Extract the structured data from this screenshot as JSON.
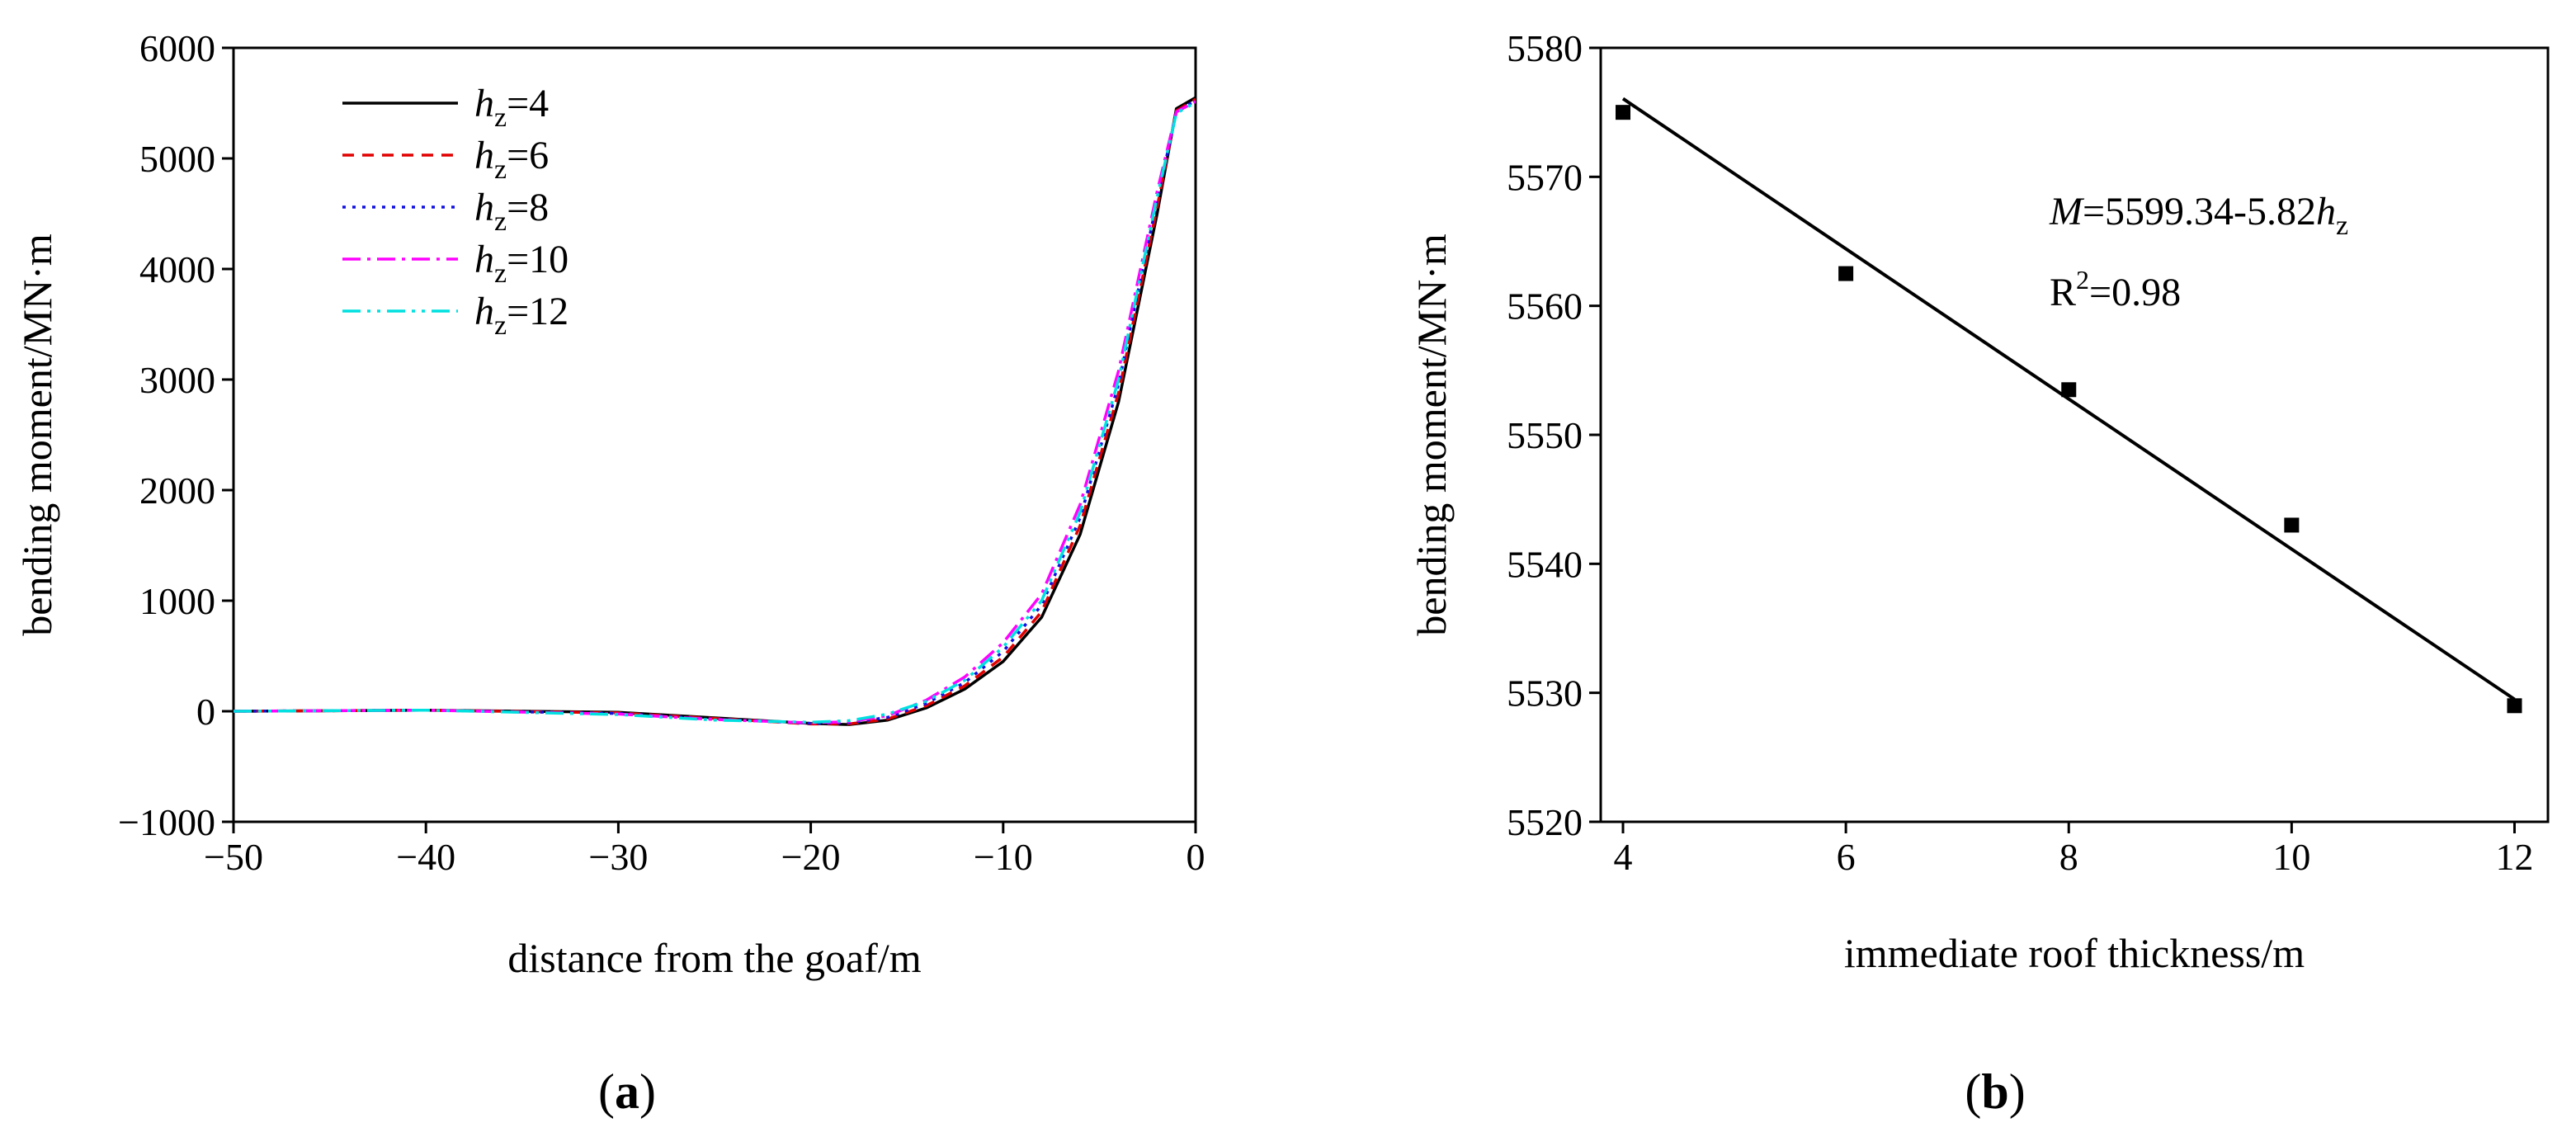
{
  "chart_data": [
    {
      "panel": "(a)",
      "panel_label": {
        "open": "(",
        "letter": "a",
        "close": ")"
      },
      "type": "line",
      "xlabel": "distance from the goaf/m",
      "ylabel": "bending moment/MN·m",
      "xlim": [
        -50,
        0
      ],
      "ylim": [
        -1000,
        6000
      ],
      "xticks": [
        -50,
        -40,
        -30,
        -20,
        -10,
        0
      ],
      "xtick_labels": [
        "−50",
        "−40",
        "−30",
        "−20",
        "−10",
        "0"
      ],
      "yticks": [
        -1000,
        0,
        1000,
        2000,
        3000,
        4000,
        5000,
        6000
      ],
      "ytick_labels": [
        "−1000",
        "0",
        "1000",
        "2000",
        "3000",
        "4000",
        "5000",
        "6000"
      ],
      "legend_position": "top-left",
      "series": [
        {
          "name": "hz=4",
          "legend_main": "h",
          "legend_sub": "z",
          "legend_value": "=4",
          "color": "#000000",
          "dash": "",
          "x": [
            -50,
            -40,
            -30,
            -25,
            -20,
            -18,
            -16,
            -14,
            -12,
            -10,
            -8,
            -6,
            -4,
            -2,
            -1,
            0
          ],
          "y": [
            0,
            10,
            -10,
            -60,
            -110,
            -120,
            -80,
            30,
            200,
            450,
            850,
            1600,
            2800,
            4500,
            5450,
            5550
          ]
        },
        {
          "name": "hz=6",
          "legend_main": "h",
          "legend_sub": "z",
          "legend_value": "=6",
          "color": "#e00000",
          "dash": "14 10",
          "x": [
            -50,
            -40,
            -30,
            -25,
            -20,
            -18,
            -16,
            -14,
            -12,
            -10,
            -8,
            -6,
            -4,
            -2,
            -1,
            0
          ],
          "y": [
            0,
            10,
            -15,
            -65,
            -115,
            -115,
            -70,
            50,
            230,
            490,
            900,
            1680,
            2880,
            4560,
            5430,
            5535
          ]
        },
        {
          "name": "hz=8",
          "legend_main": "h",
          "legend_sub": "z",
          "legend_value": "=8",
          "color": "#1010e0",
          "dash": "4 8",
          "x": [
            -50,
            -40,
            -30,
            -25,
            -20,
            -18,
            -16,
            -14,
            -12,
            -10,
            -8,
            -6,
            -4,
            -2,
            -1,
            0
          ],
          "y": [
            0,
            10,
            -20,
            -70,
            -110,
            -105,
            -55,
            70,
            260,
            540,
            960,
            1750,
            2960,
            4620,
            5420,
            5525
          ]
        },
        {
          "name": "hz=10",
          "legend_main": "h",
          "legend_sub": "z",
          "legend_value": "=10",
          "color": "#ff00ff",
          "dash": "22 8 4 8",
          "x": [
            -50,
            -40,
            -30,
            -25,
            -20,
            -18,
            -16,
            -14,
            -12,
            -10,
            -8,
            -6,
            -4,
            -2,
            -1,
            0
          ],
          "y": [
            0,
            10,
            -25,
            -75,
            -105,
            -95,
            -40,
            100,
            310,
            620,
            1060,
            1870,
            3080,
            4700,
            5420,
            5515
          ]
        },
        {
          "name": "hz=12",
          "legend_main": "h",
          "legend_sub": "z",
          "legend_value": "=12",
          "color": "#00e0e0",
          "dash": "22 8 4 8 4 8",
          "x": [
            -50,
            -40,
            -30,
            -25,
            -20,
            -18,
            -16,
            -14,
            -12,
            -10,
            -8,
            -6,
            -4,
            -2,
            -1,
            0
          ],
          "y": [
            0,
            10,
            -30,
            -80,
            -100,
            -85,
            -25,
            90,
            280,
            580,
            1000,
            1800,
            3000,
            4650,
            5410,
            5505
          ]
        }
      ]
    },
    {
      "panel": "(b)",
      "panel_label": {
        "open": "(",
        "letter": "b",
        "close": ")"
      },
      "type": "scatter",
      "xlabel": "immediate roof thickness/m",
      "ylabel": "bending moment/MN·m",
      "xlim": [
        3.8,
        12.3
      ],
      "ylim": [
        5520,
        5580
      ],
      "xticks": [
        4,
        6,
        8,
        10,
        12
      ],
      "xtick_labels": [
        "4",
        "6",
        "8",
        "10",
        "12"
      ],
      "yticks": [
        5520,
        5530,
        5540,
        5550,
        5560,
        5570,
        5580
      ],
      "ytick_labels": [
        "5520",
        "5530",
        "5540",
        "5550",
        "5560",
        "5570",
        "5580"
      ],
      "points": {
        "x": [
          4,
          6,
          8,
          10,
          12
        ],
        "y": [
          5575,
          5562.5,
          5553.5,
          5543,
          5529
        ]
      },
      "fit": {
        "intercept": 5599.34,
        "slope": -5.82,
        "x_range": [
          4,
          12
        ],
        "equation": {
          "lhs": "M",
          "rhs": "=5599.34-5.82",
          "var": "h",
          "sub": "z"
        },
        "r2": {
          "prefix": "R",
          "sup": "2",
          "value": "=0.98"
        }
      }
    }
  ]
}
